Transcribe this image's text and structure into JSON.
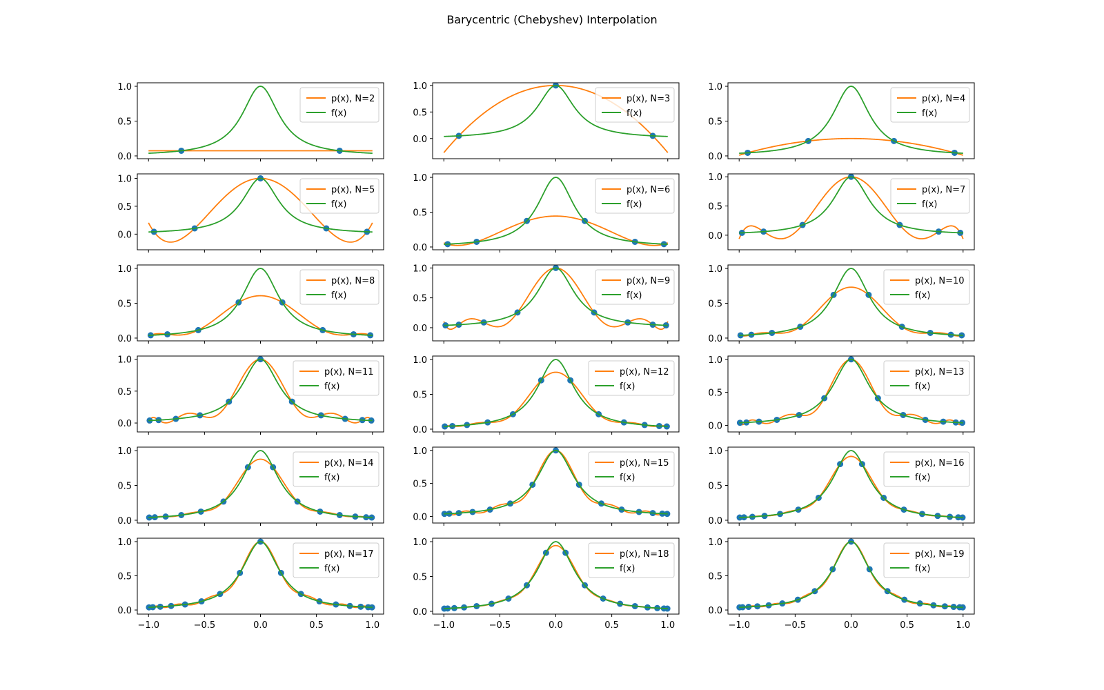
{
  "figure": {
    "title": "Barycentric (Chebyshev) Interpolation"
  },
  "style": {
    "interp_color": "#ff7f0e",
    "func_color": "#2ca02c",
    "node_color": "#1f77b4",
    "axes_color": "#000000",
    "legend_border": "#cccccc"
  },
  "chart_data": {
    "type": "line",
    "function": "f(x) = 1 / (1 + 25 x^2)",
    "interpolation_nodes": "Chebyshev points of the first kind, x_k = cos((2k+1)π/(2N)), k = 0..N-1",
    "xlim": [
      -1.1,
      1.1
    ],
    "x_ticks": [
      -1.0,
      -0.5,
      0.0,
      0.5,
      1.0
    ],
    "x_tick_labels": [
      "−1.0",
      "−0.5",
      "0.0",
      "0.5",
      "1.0"
    ],
    "y_ticks": [
      0.0,
      0.5,
      1.0
    ],
    "y_tick_labels": [
      "0.0",
      "0.5",
      "1.0"
    ],
    "legend_location": "upper right",
    "series_labels": {
      "interp_prefix": "p(x), N=",
      "func": "f(x)"
    },
    "panels": [
      {
        "N": 2,
        "ylim": [
          -0.04,
          1.05
        ]
      },
      {
        "N": 3,
        "ylim": [
          -0.38,
          1.05
        ]
      },
      {
        "N": 4,
        "ylim": [
          -0.04,
          1.05
        ]
      },
      {
        "N": 5,
        "ylim": [
          -0.28,
          1.08
        ]
      },
      {
        "N": 6,
        "ylim": [
          -0.04,
          1.05
        ]
      },
      {
        "N": 7,
        "ylim": [
          -0.25,
          1.05
        ]
      },
      {
        "N": 8,
        "ylim": [
          -0.04,
          1.05
        ]
      },
      {
        "N": 9,
        "ylim": [
          -0.22,
          1.05
        ]
      },
      {
        "N": 10,
        "ylim": [
          -0.04,
          1.05
        ]
      },
      {
        "N": 11,
        "ylim": [
          -0.14,
          1.05
        ]
      },
      {
        "N": 12,
        "ylim": [
          -0.04,
          1.05
        ]
      },
      {
        "N": 13,
        "ylim": [
          -0.1,
          1.05
        ]
      },
      {
        "N": 14,
        "ylim": [
          -0.04,
          1.05
        ]
      },
      {
        "N": 15,
        "ylim": [
          -0.1,
          1.05
        ]
      },
      {
        "N": 16,
        "ylim": [
          -0.04,
          1.05
        ]
      },
      {
        "N": 17,
        "ylim": [
          -0.06,
          1.05
        ]
      },
      {
        "N": 18,
        "ylim": [
          -0.04,
          1.05
        ]
      },
      {
        "N": 19,
        "ylim": [
          -0.06,
          1.05
        ]
      }
    ]
  }
}
